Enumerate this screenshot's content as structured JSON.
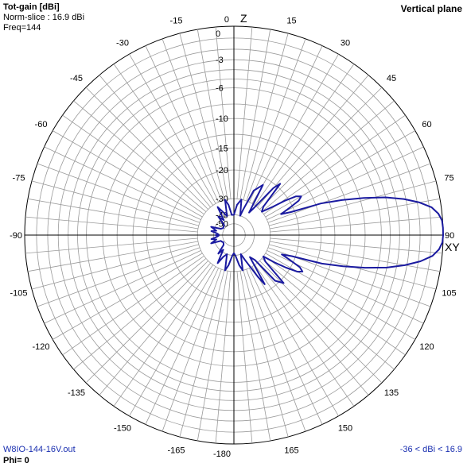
{
  "header": {
    "title": "Tot-gain [dBi]",
    "norm_slice": "Norm-slice : 16.9 dBi",
    "freq": "Freq=144",
    "plane": "Vertical plane"
  },
  "footer": {
    "file": "W8IO-144-16V.out",
    "phi": "Phi= 0",
    "range": "-36 < dBi < 16.9"
  },
  "colors": {
    "pattern": "#1a1aa0",
    "grid": "#9a9a9a",
    "axes": "#000000",
    "text": "#000000",
    "footer_text": "#1a2fb0"
  },
  "chart_data": {
    "type": "polar",
    "title": "Tot-gain [dBi]",
    "angle_labels": [
      "0",
      "15",
      "30",
      "45",
      "60",
      "75",
      "90",
      "105",
      "120",
      "135",
      "150",
      "165",
      "-180",
      "-165",
      "-150",
      "-135",
      "-120",
      "-105",
      "-90",
      "-75",
      "-60",
      "-45",
      "-30",
      "-15"
    ],
    "axis_markers": {
      "top": "Z",
      "right": "XY"
    },
    "radial_ticks": [
      "0",
      "-3",
      "-6",
      "-10",
      "-15",
      "-20",
      "-30",
      "-40",
      "-50"
    ],
    "radial_tick_values": [
      0,
      -3,
      -6,
      -10,
      -15,
      -20,
      -30,
      -40,
      -50
    ],
    "normalization_dbi": 16.9,
    "series": [
      {
        "theta_deg": [
          0,
          6,
          12,
          18,
          20,
          24,
          30,
          34,
          36,
          40,
          42,
          46,
          50,
          54,
          56,
          58,
          60,
          62,
          64,
          66,
          68,
          70,
          72,
          74,
          76,
          78,
          80,
          82,
          84,
          86,
          88,
          90,
          92,
          94,
          96,
          98,
          100,
          102,
          104,
          106,
          108,
          110,
          112,
          114,
          116,
          118,
          120,
          122,
          124,
          126,
          130,
          134,
          138,
          140,
          144,
          148,
          150,
          156,
          160,
          166,
          170,
          176,
          180,
          184,
          190,
          194,
          200,
          206,
          210,
          216,
          220,
          226,
          230,
          236,
          240,
          246,
          250,
          256,
          260,
          264,
          268,
          270,
          272,
          276,
          280,
          284,
          290,
          296,
          300,
          304,
          310,
          316,
          320,
          326,
          330,
          336,
          340,
          346,
          350,
          354
        ],
        "gain_db": [
          -40,
          -33,
          -30,
          -40,
          -35,
          -25,
          -22,
          -35,
          -32,
          -21,
          -19,
          -28,
          -30,
          -25,
          -21,
          -18,
          -17,
          -18,
          -21,
          -24,
          -21,
          -14,
          -10.5,
          -7.5,
          -5,
          -3.2,
          -1.8,
          -0.8,
          -0.3,
          -0.05,
          0,
          0,
          -0.05,
          -0.3,
          -0.8,
          -1.8,
          -3.2,
          -5,
          -7.5,
          -10.5,
          -14,
          -21,
          -24,
          -21,
          -18,
          -17,
          -18,
          -21,
          -25,
          -30,
          -28,
          -19,
          -21,
          -32,
          -35,
          -22,
          -25,
          -35,
          -40,
          -30,
          -33,
          -40,
          -42,
          -40,
          -33,
          -30,
          -40,
          -37,
          -32,
          -42,
          -37,
          -46,
          -47,
          -48,
          -47,
          -46,
          -37,
          -42,
          -38,
          -43,
          -45,
          -42,
          -45,
          -43,
          -38,
          -42,
          -37,
          -46,
          -47,
          -48,
          -47,
          -46,
          -37,
          -42,
          -32,
          -37,
          -40,
          -30,
          -33,
          -40
        ]
      }
    ]
  }
}
